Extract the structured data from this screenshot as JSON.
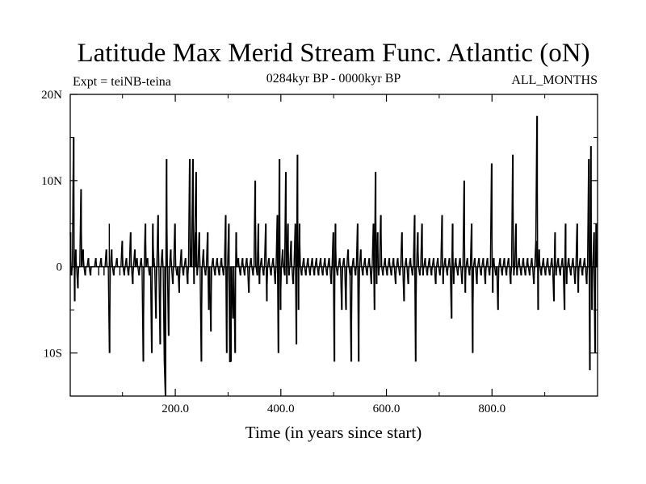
{
  "chart_data": {
    "type": "line",
    "title": "Latitude Max Merid Stream Func. Atlantic (oN)",
    "experiment": "Expt = teiNB-teina",
    "period": "0284kyr BP - 0000kyr BP",
    "season": "ALL_MONTHS",
    "xlabel": "Time (in years since start)",
    "ylabel": "",
    "xlim": [
      1,
      1000
    ],
    "ylim": [
      -15,
      20
    ],
    "x_ticks": [
      {
        "value": 200,
        "label": "200.0"
      },
      {
        "value": 400,
        "label": "400.0"
      },
      {
        "value": 600,
        "label": "600.0"
      },
      {
        "value": 800,
        "label": "800.0"
      }
    ],
    "y_ticks": [
      {
        "value": 20,
        "label": "20N"
      },
      {
        "value": 10,
        "label": "10N"
      },
      {
        "value": 0,
        "label": "0"
      },
      {
        "value": -10,
        "label": "10S"
      }
    ],
    "baseline": 0,
    "x_sample_step": 2,
    "series": [
      {
        "name": "latitude_max_stream_function",
        "spikes": [
          {
            "x": 2,
            "y": 4
          },
          {
            "x": 4,
            "y": -1
          },
          {
            "x": 8,
            "y": 15
          },
          {
            "x": 10,
            "y": -4
          },
          {
            "x": 12,
            "y": 2
          },
          {
            "x": 16,
            "y": -2.5
          },
          {
            "x": 22,
            "y": 9
          },
          {
            "x": 26,
            "y": 2
          },
          {
            "x": 30,
            "y": -1
          },
          {
            "x": 36,
            "y": 1
          },
          {
            "x": 40,
            "y": -1
          },
          {
            "x": 50,
            "y": 1
          },
          {
            "x": 55,
            "y": -1
          },
          {
            "x": 60,
            "y": 1
          },
          {
            "x": 65,
            "y": -1
          },
          {
            "x": 70,
            "y": 2
          },
          {
            "x": 75,
            "y": 5
          },
          {
            "x": 76,
            "y": -10
          },
          {
            "x": 80,
            "y": 2
          },
          {
            "x": 84,
            "y": -1
          },
          {
            "x": 90,
            "y": 1
          },
          {
            "x": 95,
            "y": -1
          },
          {
            "x": 100,
            "y": 3
          },
          {
            "x": 104,
            "y": -1
          },
          {
            "x": 108,
            "y": 1
          },
          {
            "x": 112,
            "y": -1
          },
          {
            "x": 116,
            "y": 4
          },
          {
            "x": 120,
            "y": -2
          },
          {
            "x": 124,
            "y": 2
          },
          {
            "x": 128,
            "y": 1
          },
          {
            "x": 132,
            "y": -1
          },
          {
            "x": 136,
            "y": 1
          },
          {
            "x": 140,
            "y": -11
          },
          {
            "x": 144,
            "y": 5
          },
          {
            "x": 148,
            "y": 1
          },
          {
            "x": 152,
            "y": -1
          },
          {
            "x": 156,
            "y": -10
          },
          {
            "x": 158,
            "y": 5
          },
          {
            "x": 160,
            "y": 1
          },
          {
            "x": 164,
            "y": -6
          },
          {
            "x": 168,
            "y": 6
          },
          {
            "x": 172,
            "y": -9
          },
          {
            "x": 176,
            "y": 2
          },
          {
            "x": 180,
            "y": -11
          },
          {
            "x": 182,
            "y": -15
          },
          {
            "x": 184,
            "y": 12.5
          },
          {
            "x": 188,
            "y": -8
          },
          {
            "x": 192,
            "y": 2
          },
          {
            "x": 196,
            "y": -2
          },
          {
            "x": 200,
            "y": 5
          },
          {
            "x": 204,
            "y": -1
          },
          {
            "x": 208,
            "y": -3
          },
          {
            "x": 212,
            "y": 2
          },
          {
            "x": 216,
            "y": -1
          },
          {
            "x": 220,
            "y": 1
          },
          {
            "x": 224,
            "y": -2
          },
          {
            "x": 228,
            "y": 12.5
          },
          {
            "x": 230,
            "y": 2
          },
          {
            "x": 234,
            "y": 12.5
          },
          {
            "x": 236,
            "y": -2
          },
          {
            "x": 238,
            "y": 4
          },
          {
            "x": 240,
            "y": 11
          },
          {
            "x": 242,
            "y": -1
          },
          {
            "x": 246,
            "y": 4
          },
          {
            "x": 250,
            "y": -11
          },
          {
            "x": 254,
            "y": 2
          },
          {
            "x": 258,
            "y": -1
          },
          {
            "x": 262,
            "y": 4
          },
          {
            "x": 264,
            "y": -5
          },
          {
            "x": 268,
            "y": -7.5
          },
          {
            "x": 272,
            "y": 1
          },
          {
            "x": 276,
            "y": -1
          },
          {
            "x": 280,
            "y": 1
          },
          {
            "x": 284,
            "y": -1
          },
          {
            "x": 288,
            "y": 1
          },
          {
            "x": 292,
            "y": -1
          },
          {
            "x": 296,
            "y": 6
          },
          {
            "x": 298,
            "y": -10
          },
          {
            "x": 302,
            "y": 5
          },
          {
            "x": 304,
            "y": -11
          },
          {
            "x": 306,
            "y": -11
          },
          {
            "x": 310,
            "y": -6
          },
          {
            "x": 314,
            "y": -10
          },
          {
            "x": 316,
            "y": 4
          },
          {
            "x": 320,
            "y": 1
          },
          {
            "x": 324,
            "y": -1
          },
          {
            "x": 328,
            "y": 1
          },
          {
            "x": 332,
            "y": -1
          },
          {
            "x": 336,
            "y": 1
          },
          {
            "x": 340,
            "y": -3
          },
          {
            "x": 344,
            "y": 1
          },
          {
            "x": 348,
            "y": -1
          },
          {
            "x": 352,
            "y": 10
          },
          {
            "x": 356,
            "y": -1
          },
          {
            "x": 358,
            "y": 5
          },
          {
            "x": 360,
            "y": -2
          },
          {
            "x": 364,
            "y": 1
          },
          {
            "x": 368,
            "y": -1
          },
          {
            "x": 372,
            "y": 5
          },
          {
            "x": 374,
            "y": -4
          },
          {
            "x": 378,
            "y": 1
          },
          {
            "x": 382,
            "y": -1
          },
          {
            "x": 386,
            "y": 1
          },
          {
            "x": 390,
            "y": -2
          },
          {
            "x": 394,
            "y": 6
          },
          {
            "x": 396,
            "y": -10
          },
          {
            "x": 398,
            "y": 12.5
          },
          {
            "x": 400,
            "y": -5
          },
          {
            "x": 404,
            "y": 2
          },
          {
            "x": 408,
            "y": -1
          },
          {
            "x": 410,
            "y": 11
          },
          {
            "x": 412,
            "y": -2
          },
          {
            "x": 414,
            "y": 5
          },
          {
            "x": 416,
            "y": -1
          },
          {
            "x": 420,
            "y": 3
          },
          {
            "x": 424,
            "y": -2
          },
          {
            "x": 428,
            "y": 5
          },
          {
            "x": 430,
            "y": -9
          },
          {
            "x": 432,
            "y": 13
          },
          {
            "x": 434,
            "y": -5
          },
          {
            "x": 436,
            "y": 5
          },
          {
            "x": 440,
            "y": -1
          },
          {
            "x": 444,
            "y": 1
          },
          {
            "x": 448,
            "y": -1
          },
          {
            "x": 452,
            "y": 1
          },
          {
            "x": 456,
            "y": -1
          },
          {
            "x": 460,
            "y": 1
          },
          {
            "x": 464,
            "y": -1
          },
          {
            "x": 468,
            "y": 1
          },
          {
            "x": 472,
            "y": -1
          },
          {
            "x": 476,
            "y": 1
          },
          {
            "x": 480,
            "y": -1
          },
          {
            "x": 484,
            "y": 1
          },
          {
            "x": 488,
            "y": -1
          },
          {
            "x": 492,
            "y": 1
          },
          {
            "x": 496,
            "y": -2
          },
          {
            "x": 500,
            "y": 4
          },
          {
            "x": 502,
            "y": -11
          },
          {
            "x": 504,
            "y": 5
          },
          {
            "x": 508,
            "y": -1
          },
          {
            "x": 512,
            "y": 1
          },
          {
            "x": 516,
            "y": -5
          },
          {
            "x": 520,
            "y": 1
          },
          {
            "x": 524,
            "y": -5
          },
          {
            "x": 528,
            "y": 2
          },
          {
            "x": 532,
            "y": -1
          },
          {
            "x": 534,
            "y": -11
          },
          {
            "x": 538,
            "y": 1
          },
          {
            "x": 542,
            "y": -1
          },
          {
            "x": 546,
            "y": 5
          },
          {
            "x": 548,
            "y": -11
          },
          {
            "x": 552,
            "y": 2
          },
          {
            "x": 556,
            "y": -1
          },
          {
            "x": 560,
            "y": 1
          },
          {
            "x": 564,
            "y": -1
          },
          {
            "x": 568,
            "y": 1
          },
          {
            "x": 572,
            "y": -2
          },
          {
            "x": 576,
            "y": 5
          },
          {
            "x": 578,
            "y": -5
          },
          {
            "x": 580,
            "y": 11
          },
          {
            "x": 582,
            "y": -2
          },
          {
            "x": 584,
            "y": 4
          },
          {
            "x": 586,
            "y": -1
          },
          {
            "x": 590,
            "y": 6
          },
          {
            "x": 594,
            "y": -1
          },
          {
            "x": 598,
            "y": 1
          },
          {
            "x": 602,
            "y": -1
          },
          {
            "x": 606,
            "y": 1
          },
          {
            "x": 610,
            "y": -1
          },
          {
            "x": 614,
            "y": 1
          },
          {
            "x": 618,
            "y": -2
          },
          {
            "x": 622,
            "y": 1
          },
          {
            "x": 626,
            "y": -1
          },
          {
            "x": 630,
            "y": 4
          },
          {
            "x": 634,
            "y": -4
          },
          {
            "x": 638,
            "y": 1
          },
          {
            "x": 642,
            "y": -2
          },
          {
            "x": 646,
            "y": 1
          },
          {
            "x": 650,
            "y": -1
          },
          {
            "x": 654,
            "y": 6
          },
          {
            "x": 656,
            "y": -11
          },
          {
            "x": 660,
            "y": 4
          },
          {
            "x": 664,
            "y": -1
          },
          {
            "x": 668,
            "y": 5
          },
          {
            "x": 670,
            "y": -1
          },
          {
            "x": 674,
            "y": 1
          },
          {
            "x": 678,
            "y": -1
          },
          {
            "x": 682,
            "y": 1
          },
          {
            "x": 686,
            "y": -1
          },
          {
            "x": 690,
            "y": 1
          },
          {
            "x": 694,
            "y": -2
          },
          {
            "x": 698,
            "y": 1
          },
          {
            "x": 702,
            "y": -1
          },
          {
            "x": 706,
            "y": 6
          },
          {
            "x": 708,
            "y": -2
          },
          {
            "x": 712,
            "y": 1
          },
          {
            "x": 716,
            "y": -1
          },
          {
            "x": 720,
            "y": 1
          },
          {
            "x": 724,
            "y": -6
          },
          {
            "x": 726,
            "y": 5
          },
          {
            "x": 728,
            "y": -2
          },
          {
            "x": 732,
            "y": 1
          },
          {
            "x": 736,
            "y": -1
          },
          {
            "x": 740,
            "y": 1
          },
          {
            "x": 744,
            "y": -2
          },
          {
            "x": 748,
            "y": 10
          },
          {
            "x": 750,
            "y": -3
          },
          {
            "x": 754,
            "y": 1
          },
          {
            "x": 758,
            "y": -1
          },
          {
            "x": 762,
            "y": 5
          },
          {
            "x": 764,
            "y": -10
          },
          {
            "x": 768,
            "y": 1
          },
          {
            "x": 772,
            "y": -2
          },
          {
            "x": 776,
            "y": 1
          },
          {
            "x": 780,
            "y": -1
          },
          {
            "x": 784,
            "y": 1
          },
          {
            "x": 788,
            "y": -2
          },
          {
            "x": 792,
            "y": 1
          },
          {
            "x": 796,
            "y": -1
          },
          {
            "x": 800,
            "y": 12
          },
          {
            "x": 802,
            "y": -3
          },
          {
            "x": 804,
            "y": 1
          },
          {
            "x": 808,
            "y": -1
          },
          {
            "x": 812,
            "y": -5
          },
          {
            "x": 816,
            "y": 1
          },
          {
            "x": 820,
            "y": -1
          },
          {
            "x": 824,
            "y": 1
          },
          {
            "x": 828,
            "y": -1
          },
          {
            "x": 832,
            "y": 1
          },
          {
            "x": 836,
            "y": -2
          },
          {
            "x": 840,
            "y": 13
          },
          {
            "x": 842,
            "y": -1
          },
          {
            "x": 846,
            "y": 5
          },
          {
            "x": 848,
            "y": -1
          },
          {
            "x": 852,
            "y": 1
          },
          {
            "x": 856,
            "y": -1
          },
          {
            "x": 860,
            "y": 1
          },
          {
            "x": 864,
            "y": -1
          },
          {
            "x": 868,
            "y": 1
          },
          {
            "x": 872,
            "y": -1
          },
          {
            "x": 876,
            "y": 1
          },
          {
            "x": 880,
            "y": -2
          },
          {
            "x": 884,
            "y": 3
          },
          {
            "x": 886,
            "y": 17.5
          },
          {
            "x": 888,
            "y": -5
          },
          {
            "x": 890,
            "y": 2
          },
          {
            "x": 894,
            "y": -1
          },
          {
            "x": 898,
            "y": 1
          },
          {
            "x": 902,
            "y": -1
          },
          {
            "x": 906,
            "y": 1
          },
          {
            "x": 910,
            "y": -1
          },
          {
            "x": 914,
            "y": 1
          },
          {
            "x": 918,
            "y": -4
          },
          {
            "x": 920,
            "y": 4
          },
          {
            "x": 922,
            "y": -1
          },
          {
            "x": 926,
            "y": 1
          },
          {
            "x": 930,
            "y": -1
          },
          {
            "x": 934,
            "y": 1
          },
          {
            "x": 938,
            "y": -5
          },
          {
            "x": 940,
            "y": 5
          },
          {
            "x": 942,
            "y": -2
          },
          {
            "x": 946,
            "y": 1
          },
          {
            "x": 950,
            "y": -1
          },
          {
            "x": 954,
            "y": 1
          },
          {
            "x": 958,
            "y": -2
          },
          {
            "x": 962,
            "y": 5
          },
          {
            "x": 964,
            "y": -3
          },
          {
            "x": 968,
            "y": 1
          },
          {
            "x": 972,
            "y": -1
          },
          {
            "x": 976,
            "y": 1
          },
          {
            "x": 980,
            "y": -2
          },
          {
            "x": 984,
            "y": 12.5
          },
          {
            "x": 986,
            "y": -12
          },
          {
            "x": 988,
            "y": 14
          },
          {
            "x": 990,
            "y": -5
          },
          {
            "x": 994,
            "y": 4
          },
          {
            "x": 996,
            "y": -10
          },
          {
            "x": 998,
            "y": 5
          }
        ]
      }
    ]
  }
}
